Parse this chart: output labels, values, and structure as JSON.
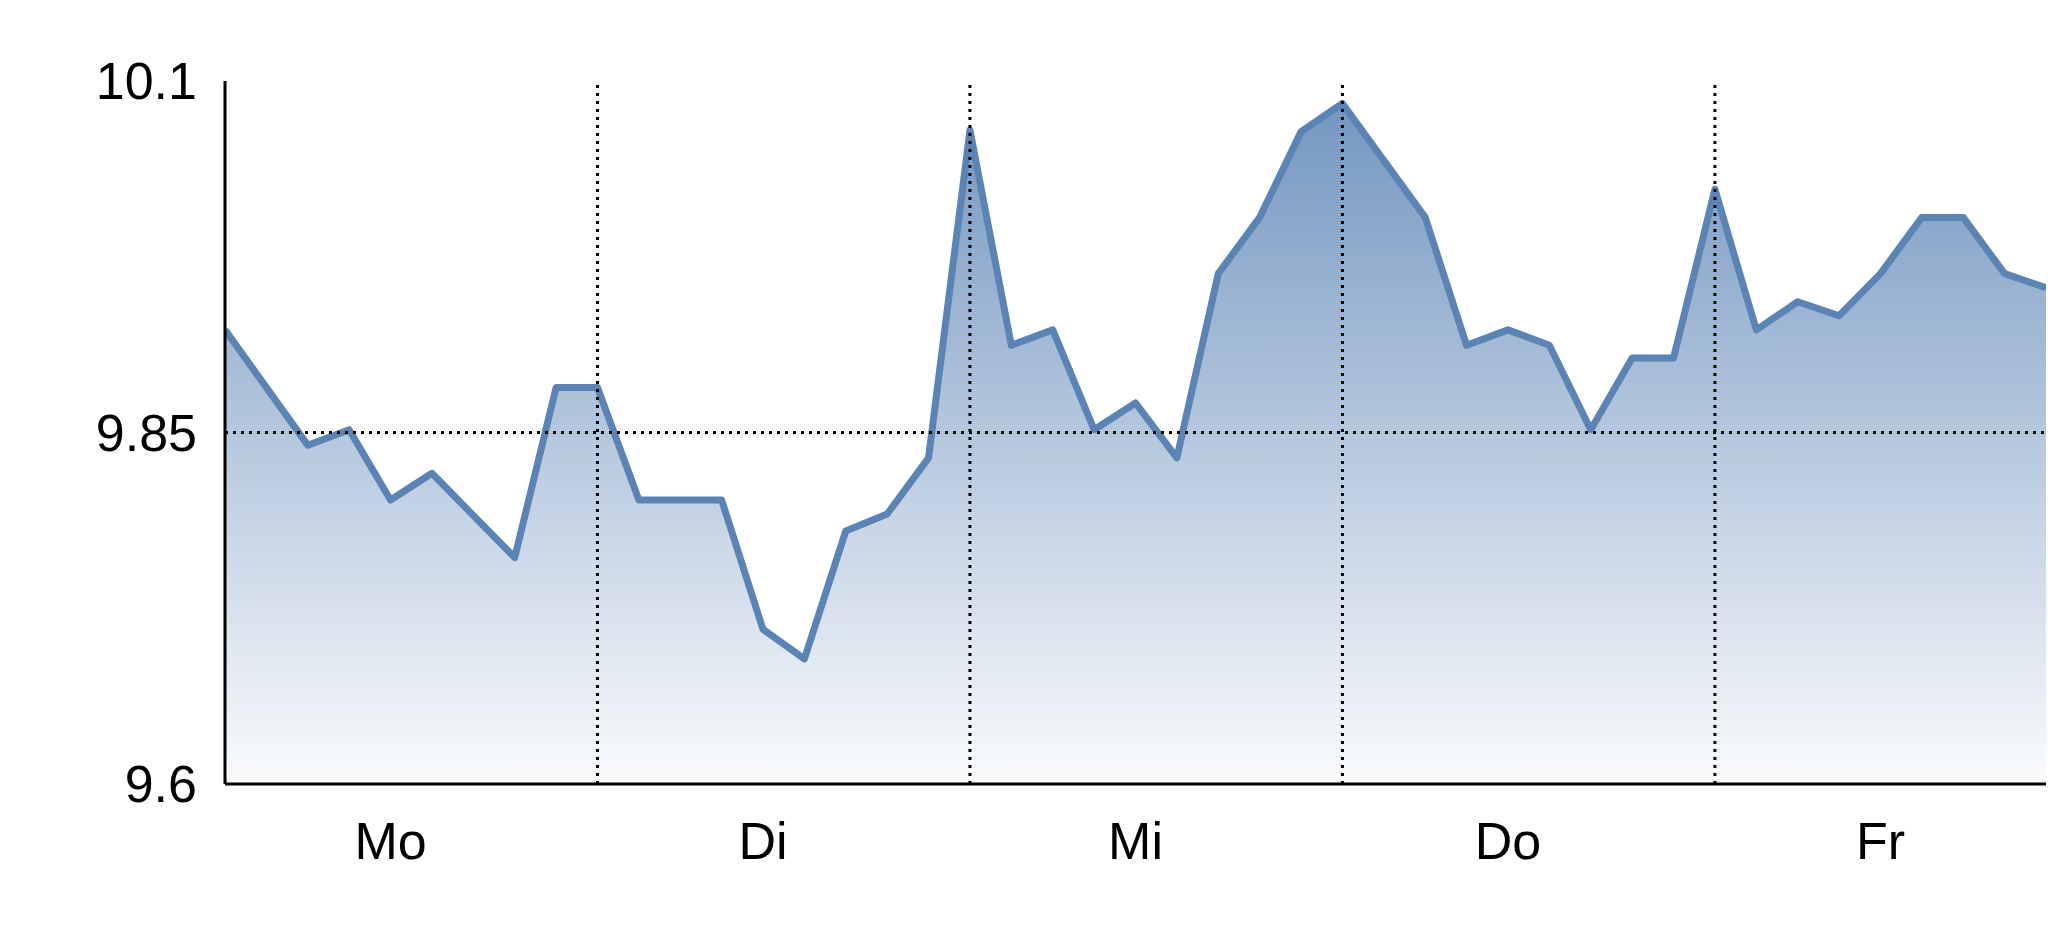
{
  "chart_data": {
    "type": "area",
    "categories": [
      null,
      null,
      null,
      null,
      "Mo",
      null,
      null,
      null,
      null,
      null,
      null,
      null,
      null,
      "Di",
      null,
      null,
      null,
      null,
      null,
      null,
      null,
      null,
      "Mi",
      null,
      null,
      null,
      null,
      null,
      null,
      null,
      null,
      "Do",
      null,
      null,
      null,
      null,
      null,
      null,
      null,
      null,
      "Fr",
      null,
      null,
      null,
      null
    ],
    "series": [
      {
        "color": "#5b84b5",
        "values": [
          9.923,
          null,
          9.841,
          9.852,
          9.802,
          9.821,
          null,
          9.761,
          9.882,
          9.882,
          9.802,
          null,
          9.802,
          9.71,
          9.689,
          9.78,
          9.792,
          9.832,
          10.065,
          9.912,
          9.923,
          9.852,
          9.871,
          9.832,
          9.963,
          10.003,
          10.064,
          10.084,
          null,
          10.003,
          9.912,
          9.923,
          9.912,
          9.852,
          9.903,
          9.903,
          10.023,
          9.923,
          9.943,
          9.933,
          9.963,
          10.003,
          10.003,
          9.963,
          9.953
        ]
      }
    ],
    "ylim": [
      9.6,
      10.1
    ],
    "yticks": [
      9.6,
      9.85,
      10.1
    ],
    "grid": true
  }
}
